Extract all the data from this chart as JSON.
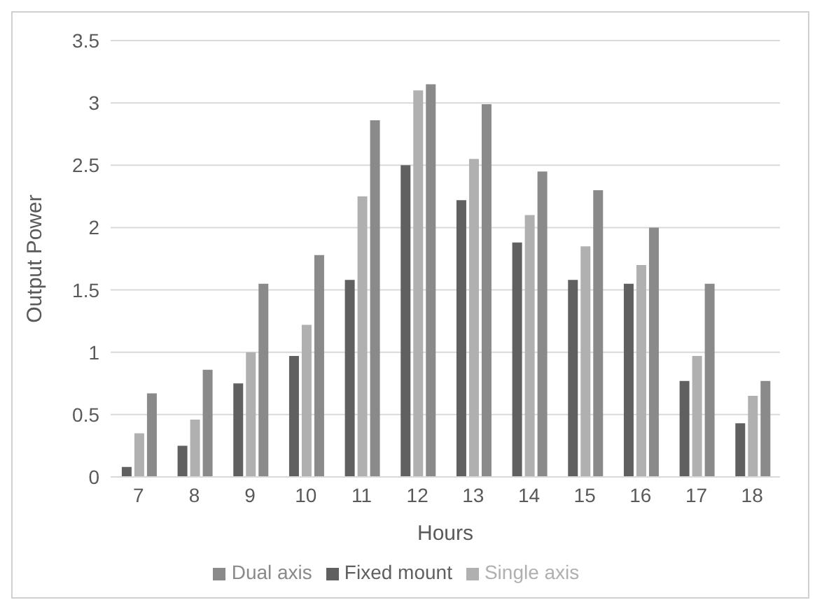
{
  "chart_data": {
    "type": "bar",
    "xlabel": "Hours",
    "ylabel": "Output Power",
    "categories": [
      "7",
      "8",
      "9",
      "10",
      "11",
      "12",
      "13",
      "14",
      "15",
      "16",
      "17",
      "18"
    ],
    "series": [
      {
        "name": "Fixed mount",
        "color": "#606060",
        "values": [
          0.08,
          0.25,
          0.75,
          0.97,
          1.58,
          2.5,
          2.22,
          1.88,
          1.58,
          1.55,
          0.77,
          0.43
        ]
      },
      {
        "name": "Single axis",
        "color": "#b0b0b0",
        "values": [
          0.35,
          0.46,
          1.0,
          1.22,
          2.25,
          3.1,
          2.55,
          2.1,
          1.85,
          1.7,
          0.97,
          0.65
        ]
      },
      {
        "name": "Dual axis",
        "color": "#8a8a8a",
        "values": [
          0.67,
          0.86,
          1.55,
          1.78,
          2.86,
          3.15,
          2.99,
          2.45,
          2.3,
          2.0,
          1.55,
          0.77
        ]
      }
    ],
    "ylim": [
      0,
      3.5
    ],
    "yticks": [
      0,
      0.5,
      1,
      1.5,
      2,
      2.5,
      3,
      3.5
    ],
    "grid": "y",
    "legend": "bottom"
  }
}
